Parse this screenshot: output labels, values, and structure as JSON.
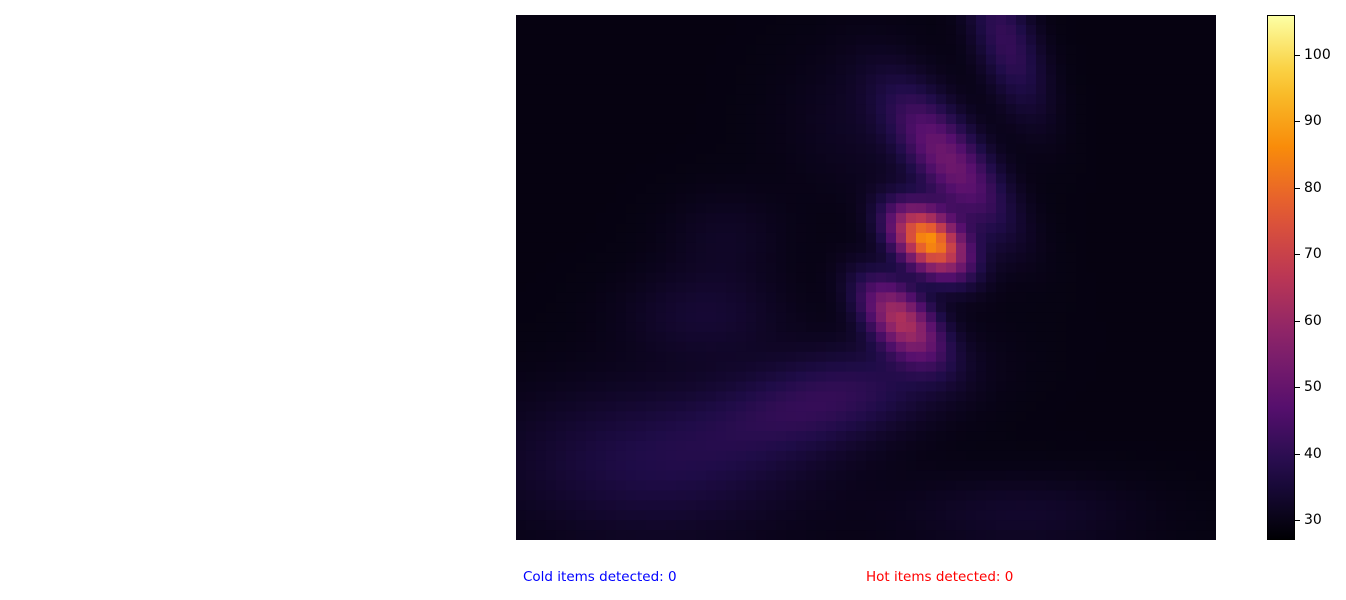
{
  "chart_data": {
    "type": "heatmap",
    "title": "",
    "xlabel": "",
    "ylabel": "",
    "colormap": "inferno",
    "colorbar": {
      "vmin": 27,
      "vmax": 106,
      "ticks": [
        30,
        40,
        50,
        60,
        70,
        80,
        90,
        100
      ],
      "tick_labels": [
        "30",
        "40",
        "50",
        "60",
        "70",
        "80",
        "90",
        "100"
      ]
    },
    "grid": false,
    "blobs": [
      {
        "cx": 0.59,
        "cy": 0.43,
        "sx": 0.03,
        "sy": 0.05,
        "rot": -33,
        "amp": 58
      },
      {
        "cx": 0.55,
        "cy": 0.58,
        "sx": 0.03,
        "sy": 0.06,
        "rot": -30,
        "amp": 34
      },
      {
        "cx": 0.62,
        "cy": 0.28,
        "sx": 0.035,
        "sy": 0.1,
        "rot": -28,
        "amp": 22
      },
      {
        "cx": 0.7,
        "cy": 0.05,
        "sx": 0.03,
        "sy": 0.1,
        "rot": -15,
        "amp": 12
      },
      {
        "cx": 0.45,
        "cy": 0.73,
        "sx": 0.12,
        "sy": 0.06,
        "rot": -20,
        "amp": 11
      },
      {
        "cx": 0.2,
        "cy": 0.85,
        "sx": 0.15,
        "sy": 0.1,
        "rot": 0,
        "amp": 8
      },
      {
        "cx": 0.27,
        "cy": 0.57,
        "sx": 0.08,
        "sy": 0.06,
        "rot": 0,
        "amp": 5
      },
      {
        "cx": 0.5,
        "cy": 0.2,
        "sx": 0.08,
        "sy": 0.1,
        "rot": 0,
        "amp": 3
      },
      {
        "cx": 0.72,
        "cy": 0.95,
        "sx": 0.12,
        "sy": 0.05,
        "rot": 0,
        "amp": 4
      },
      {
        "cx": 0.3,
        "cy": 0.42,
        "sx": 0.06,
        "sy": 0.06,
        "rot": 0,
        "amp": 3
      }
    ],
    "base_value": 29
  },
  "status": {
    "cold_label": "Cold items detected: 0",
    "cold_color": "#0000ff",
    "hot_label": "Hot items detected: 0",
    "hot_color": "#ff0000"
  }
}
